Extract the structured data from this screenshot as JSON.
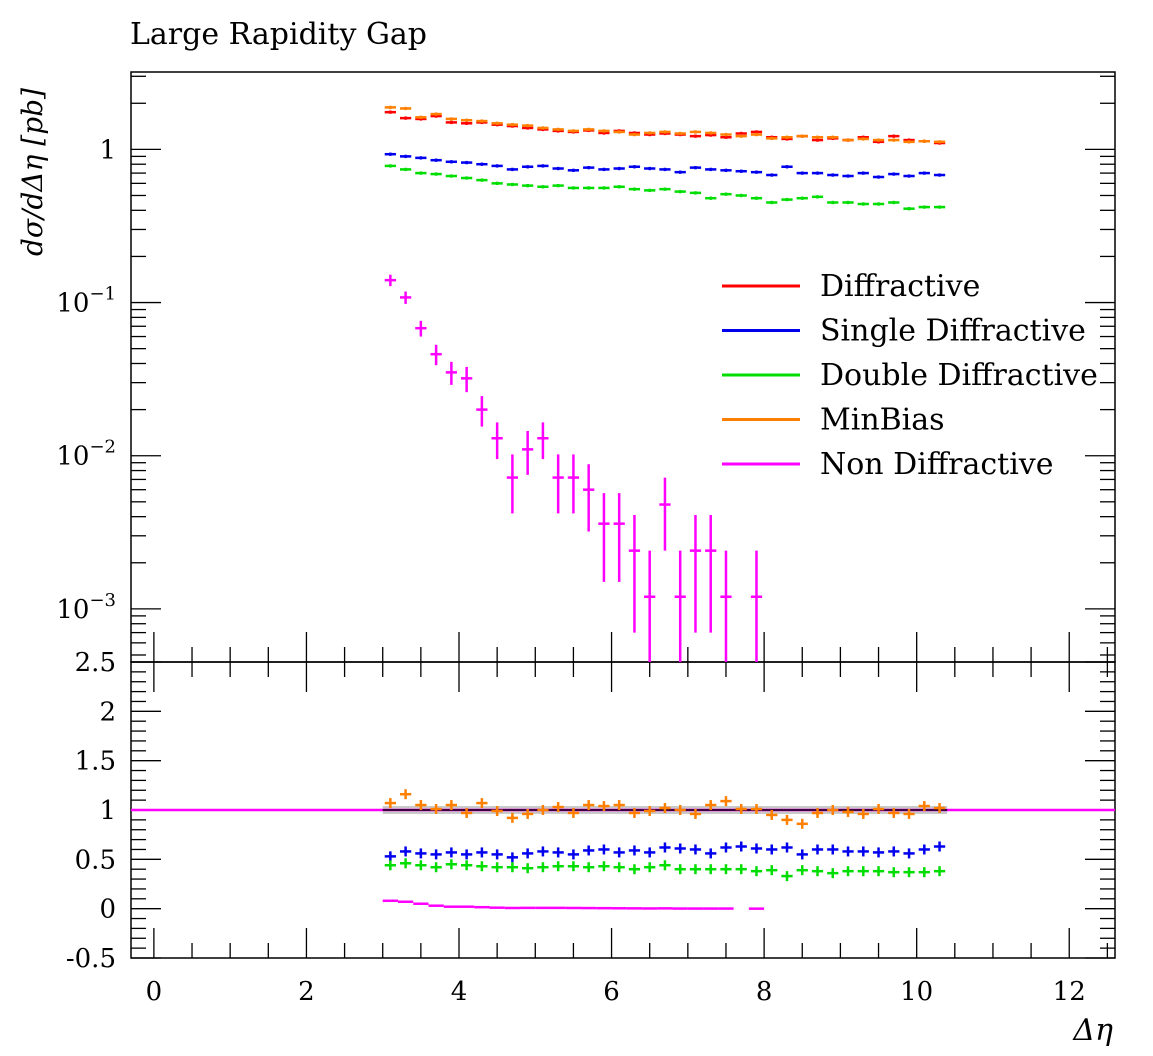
{
  "chart_data": {
    "type": "scatter",
    "title": "Large Rapidity Gap",
    "xlabel": "Δη",
    "ylabel": "dσ/dΔη [pb]",
    "xlim": [
      -0.3,
      12.6
    ],
    "main_y_scale": "log",
    "main_ylim": [
      0.00045,
      3.2
    ],
    "main_ytick_labels": [
      {
        "value": 1,
        "label": "1"
      },
      {
        "value": 0.1,
        "label": "10",
        "exp": "−1"
      },
      {
        "value": 0.01,
        "label": "10",
        "exp": "−2"
      },
      {
        "value": 0.001,
        "label": "10",
        "exp": "−3"
      }
    ],
    "ratio_ylim": [
      -0.5,
      2.5
    ],
    "ratio_ytick_labels": [
      "2.5",
      "2",
      "1.5",
      "1",
      "0.5",
      "0",
      "-0.5"
    ],
    "ratio_ytick_values": [
      2.5,
      2,
      1.5,
      1,
      0.5,
      0,
      -0.5
    ],
    "xtick_labels": [
      "0",
      "2",
      "4",
      "6",
      "8",
      "10",
      "12"
    ],
    "xtick_values": [
      0,
      2,
      4,
      6,
      8,
      10,
      12
    ],
    "legend_position": "right",
    "grid": false,
    "bin_edges": [
      3.0,
      3.2,
      3.4,
      3.6,
      3.8,
      4.0,
      4.2,
      4.4,
      4.6,
      4.8,
      5.0,
      5.2,
      5.4,
      5.6,
      5.8,
      6.0,
      6.2,
      6.4,
      6.6,
      6.8,
      7.0,
      7.2,
      7.4,
      7.6,
      7.8,
      8.0,
      8.2,
      8.4,
      8.6,
      8.8,
      9.0,
      9.2,
      9.4,
      9.6,
      9.8,
      10.0,
      10.2,
      10.4
    ],
    "series": [
      {
        "name": "Diffractive",
        "color": "#ff0000",
        "values": [
          1.75,
          1.6,
          1.58,
          1.65,
          1.5,
          1.48,
          1.5,
          1.45,
          1.42,
          1.38,
          1.35,
          1.32,
          1.3,
          1.33,
          1.28,
          1.32,
          1.28,
          1.25,
          1.27,
          1.25,
          1.22,
          1.24,
          1.2,
          1.27,
          1.3,
          1.2,
          1.17,
          1.22,
          1.15,
          1.18,
          1.15,
          1.2,
          1.12,
          1.22,
          1.15,
          1.13,
          1.1
        ],
        "ratio": [
          1.0,
          1.0,
          1.0,
          1.0,
          1.0,
          1.0,
          1.0,
          1.0,
          1.0,
          1.0,
          1.0,
          1.0,
          1.0,
          1.0,
          1.0,
          1.0,
          1.0,
          1.0,
          1.0,
          1.0,
          1.0,
          1.0,
          1.0,
          1.0,
          1.0,
          1.0,
          1.0,
          1.0,
          1.0,
          1.0,
          1.0,
          1.0,
          1.0,
          1.0,
          1.0,
          1.0,
          1.0
        ]
      },
      {
        "name": "Single Diffractive",
        "color": "#0000ee",
        "values": [
          0.93,
          0.9,
          0.88,
          0.85,
          0.83,
          0.82,
          0.8,
          0.78,
          0.74,
          0.77,
          0.78,
          0.75,
          0.73,
          0.76,
          0.74,
          0.75,
          0.77,
          0.75,
          0.74,
          0.71,
          0.76,
          0.74,
          0.73,
          0.72,
          0.71,
          0.68,
          0.77,
          0.7,
          0.7,
          0.68,
          0.67,
          0.7,
          0.66,
          0.69,
          0.67,
          0.7,
          0.68
        ],
        "ratio": [
          0.53,
          0.58,
          0.56,
          0.55,
          0.57,
          0.55,
          0.57,
          0.55,
          0.52,
          0.56,
          0.58,
          0.57,
          0.55,
          0.59,
          0.6,
          0.57,
          0.59,
          0.57,
          0.62,
          0.61,
          0.6,
          0.56,
          0.62,
          0.63,
          0.61,
          0.6,
          0.62,
          0.55,
          0.6,
          0.6,
          0.58,
          0.58,
          0.57,
          0.58,
          0.56,
          0.6,
          0.63
        ]
      },
      {
        "name": "Double Diffractive",
        "color": "#00dd00",
        "values": [
          0.78,
          0.74,
          0.7,
          0.69,
          0.67,
          0.65,
          0.63,
          0.6,
          0.59,
          0.58,
          0.57,
          0.58,
          0.56,
          0.56,
          0.56,
          0.57,
          0.55,
          0.54,
          0.55,
          0.53,
          0.52,
          0.48,
          0.51,
          0.5,
          0.48,
          0.45,
          0.47,
          0.48,
          0.49,
          0.45,
          0.45,
          0.44,
          0.44,
          0.45,
          0.41,
          0.42,
          0.42
        ],
        "ratio": [
          0.44,
          0.46,
          0.44,
          0.42,
          0.45,
          0.44,
          0.43,
          0.42,
          0.42,
          0.41,
          0.42,
          0.43,
          0.43,
          0.42,
          0.43,
          0.42,
          0.4,
          0.42,
          0.44,
          0.4,
          0.4,
          0.4,
          0.4,
          0.4,
          0.38,
          0.39,
          0.33,
          0.39,
          0.38,
          0.36,
          0.38,
          0.38,
          0.38,
          0.37,
          0.37,
          0.37,
          0.38
        ]
      },
      {
        "name": "MinBias",
        "color": "#ff8000",
        "values": [
          1.88,
          1.85,
          1.62,
          1.7,
          1.58,
          1.55,
          1.53,
          1.48,
          1.45,
          1.43,
          1.38,
          1.35,
          1.32,
          1.35,
          1.32,
          1.3,
          1.25,
          1.28,
          1.3,
          1.27,
          1.3,
          1.28,
          1.25,
          1.22,
          1.25,
          1.18,
          1.2,
          1.22,
          1.2,
          1.2,
          1.15,
          1.17,
          1.15,
          1.15,
          1.12,
          1.13,
          1.12
        ],
        "ratio": [
          1.07,
          1.16,
          1.05,
          1.01,
          1.05,
          0.97,
          1.07,
          0.99,
          0.92,
          0.96,
          1.0,
          1.03,
          0.97,
          1.05,
          1.04,
          1.05,
          0.97,
          0.99,
          1.02,
          1.0,
          0.96,
          1.05,
          1.09,
          1.01,
          1.01,
          0.95,
          0.9,
          0.86,
          0.97,
          1.0,
          0.98,
          0.96,
          1.01,
          0.97,
          0.96,
          1.04,
          1.02
        ]
      },
      {
        "name": "Non Diffractive",
        "color": "#ff00ff",
        "values": [
          0.14,
          0.108,
          0.068,
          0.046,
          0.035,
          0.032,
          0.02,
          0.013,
          0.0072,
          0.011,
          0.013,
          0.0072,
          0.0072,
          0.006,
          0.0036,
          0.0036,
          0.0024,
          0.0012,
          0.0048,
          0.0012,
          0.0024,
          0.0024,
          0.0012,
          null,
          0.0012
        ],
        "errors": [
          0.012,
          0.01,
          0.008,
          0.007,
          0.006,
          0.006,
          0.0045,
          0.0035,
          0.003,
          0.0035,
          0.0035,
          0.003,
          0.003,
          0.0028,
          0.0021,
          0.0021,
          0.0017,
          0.0012,
          0.0024,
          0.0012,
          0.0017,
          0.0017,
          0.0012,
          null,
          0.0012
        ],
        "ratio": [
          0.08,
          0.07,
          0.05,
          0.03,
          0.02,
          0.02,
          0.015,
          0.01,
          0.007,
          0.008,
          0.008,
          0.008,
          0.007,
          0.006,
          0.005,
          0.004,
          0.003,
          0.002,
          0.003,
          0.001,
          0.001,
          0.001,
          0.001,
          null,
          0.0
        ]
      }
    ],
    "ratio_reference_line": 1
  }
}
